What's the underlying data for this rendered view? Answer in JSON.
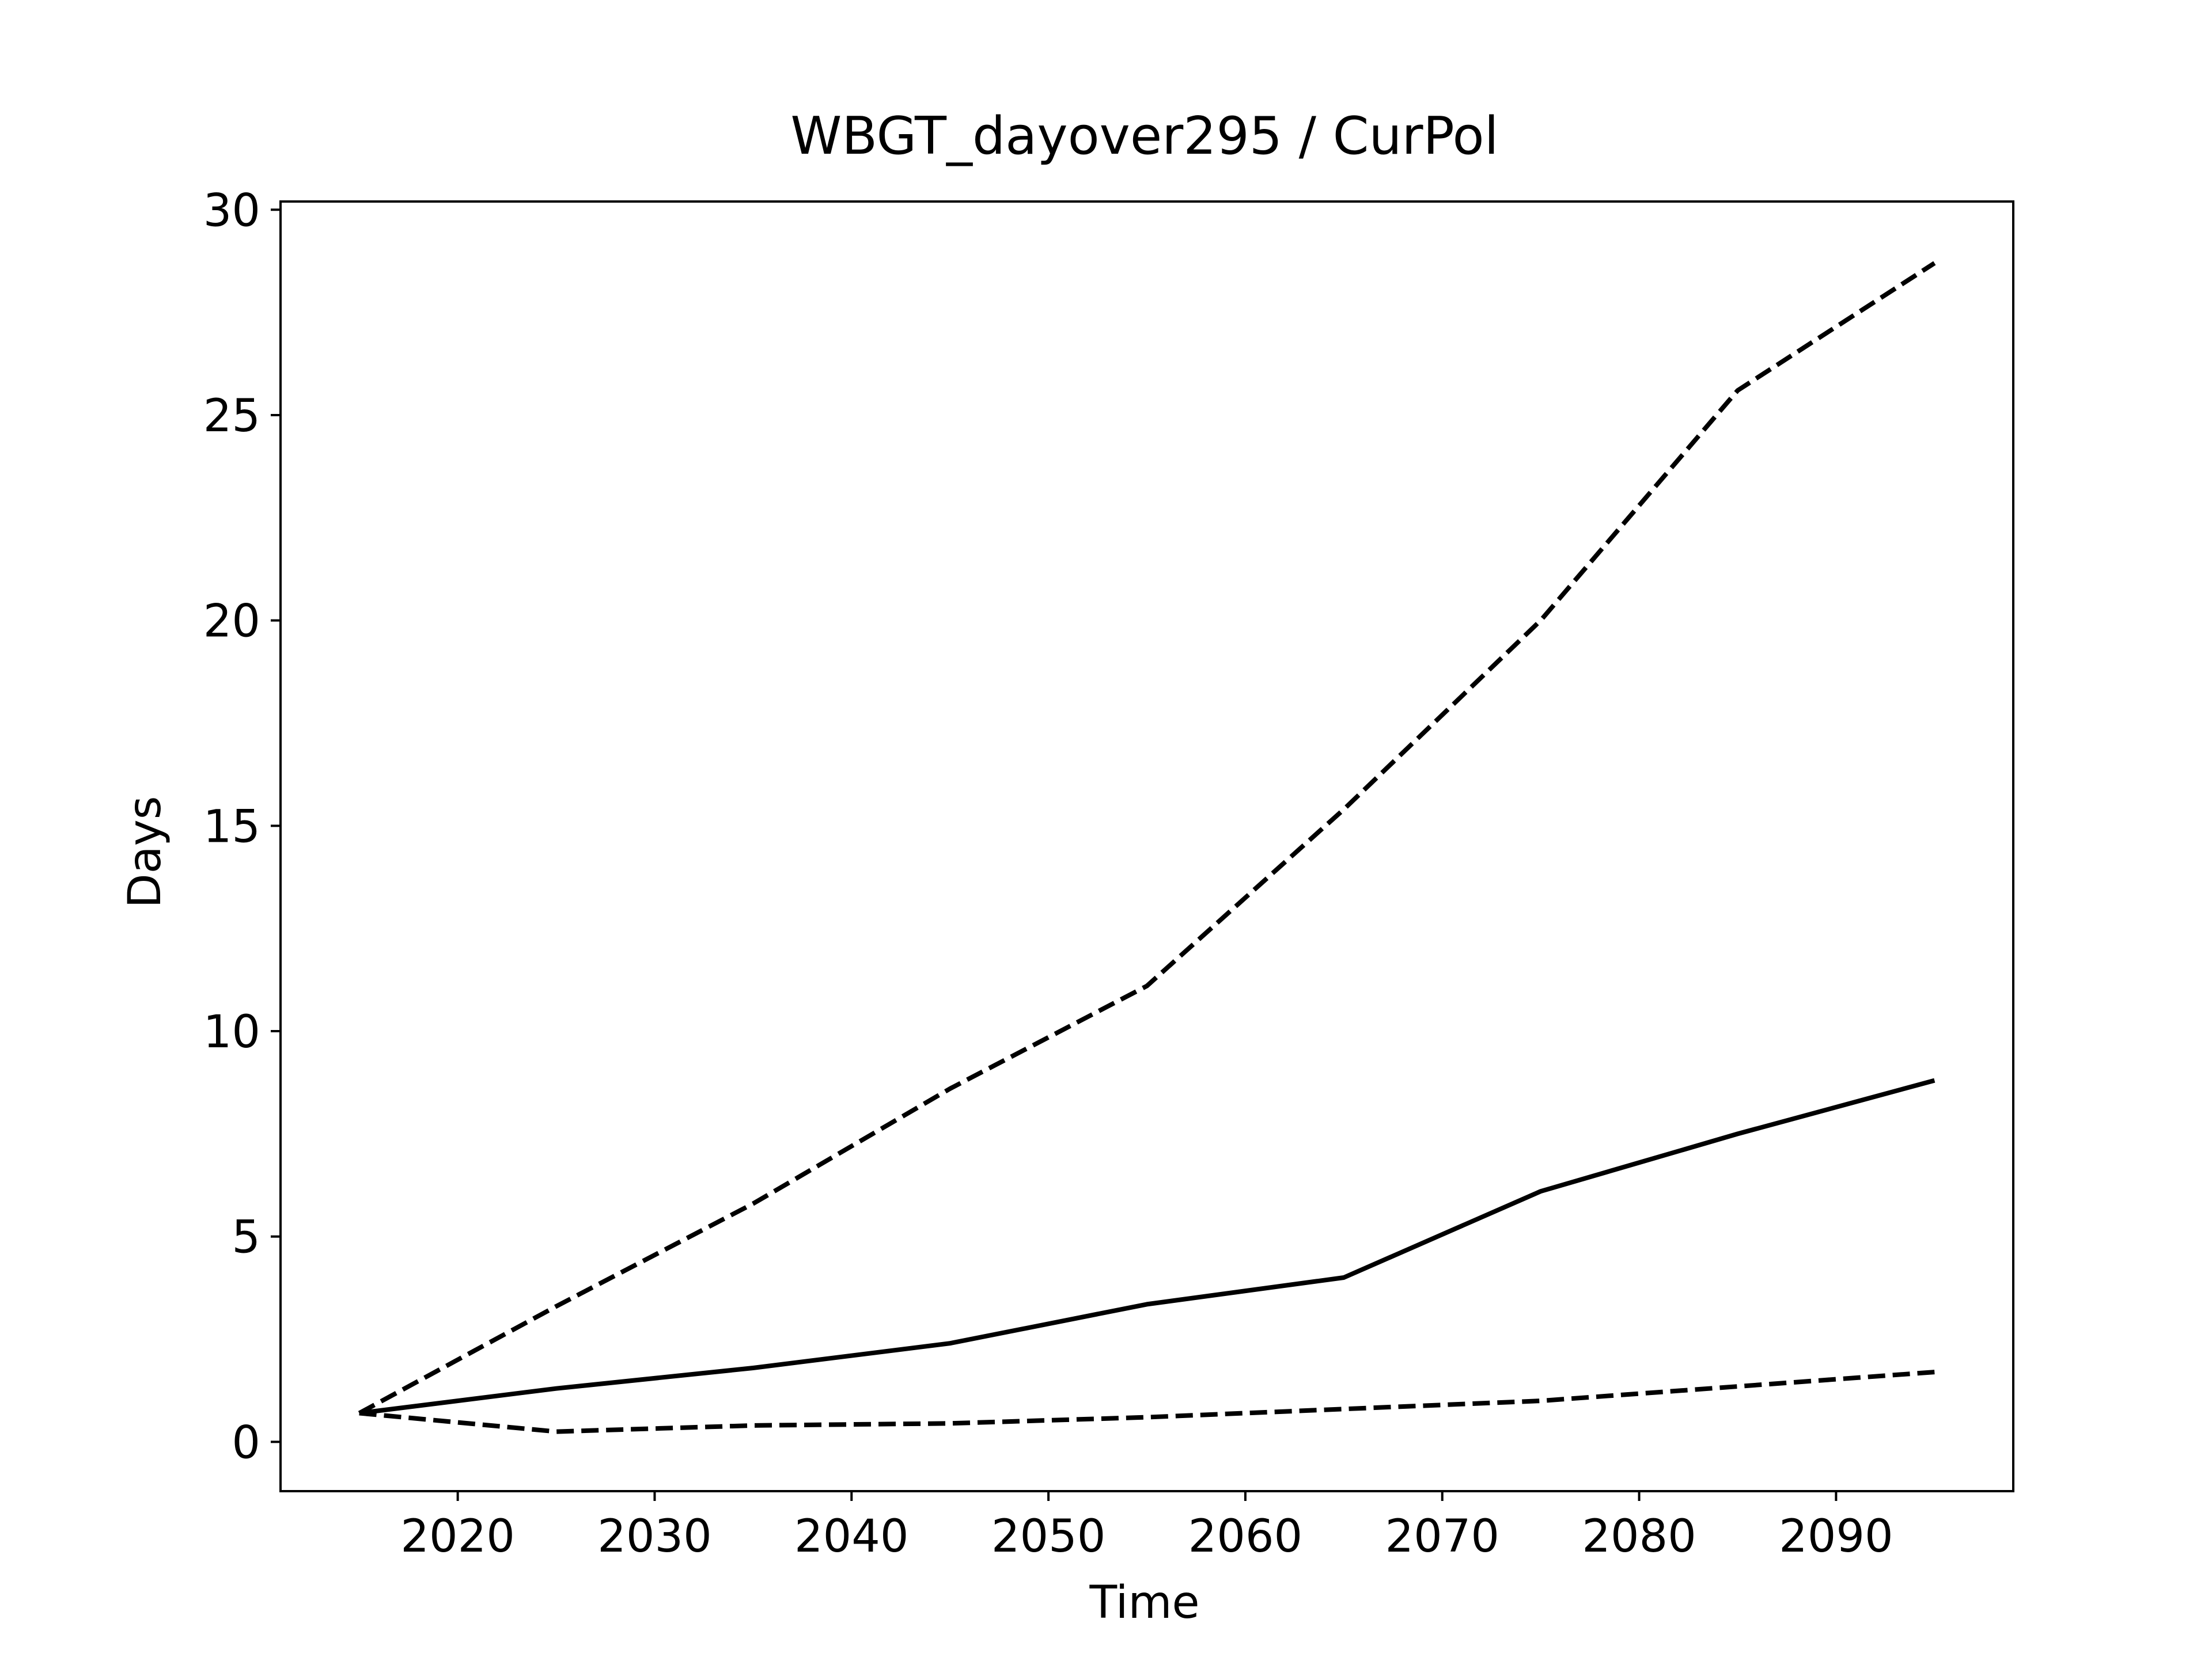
{
  "chart_data": {
    "type": "line",
    "title": "WBGT_dayover295 / CurPol",
    "xlabel": "Time",
    "ylabel": "Days",
    "xlim": [
      2011,
      2099
    ],
    "ylim": [
      -1.2,
      30.2
    ],
    "x_ticks": [
      2020,
      2030,
      2040,
      2050,
      2060,
      2070,
      2080,
      2090
    ],
    "y_ticks": [
      0,
      5,
      10,
      15,
      20,
      25,
      30
    ],
    "grid": false,
    "legend": "none",
    "line_color": "#000000",
    "series": [
      {
        "style": "dashed",
        "x": [
          2015,
          2025,
          2035,
          2045,
          2055,
          2065,
          2075,
          2085,
          2095
        ],
        "y": [
          0.7,
          3.3,
          5.8,
          8.6,
          11.1,
          15.4,
          20.0,
          25.6,
          28.7
        ]
      },
      {
        "style": "solid",
        "x": [
          2015,
          2025,
          2035,
          2045,
          2055,
          2065,
          2075,
          2085,
          2095
        ],
        "y": [
          0.7,
          1.3,
          1.8,
          2.4,
          3.35,
          4.0,
          6.1,
          7.5,
          8.8
        ]
      },
      {
        "style": "dashed",
        "x": [
          2015,
          2025,
          2035,
          2045,
          2055,
          2065,
          2075,
          2085,
          2095
        ],
        "y": [
          0.7,
          0.25,
          0.4,
          0.45,
          0.6,
          0.8,
          1.0,
          1.35,
          1.7
        ]
      }
    ]
  }
}
